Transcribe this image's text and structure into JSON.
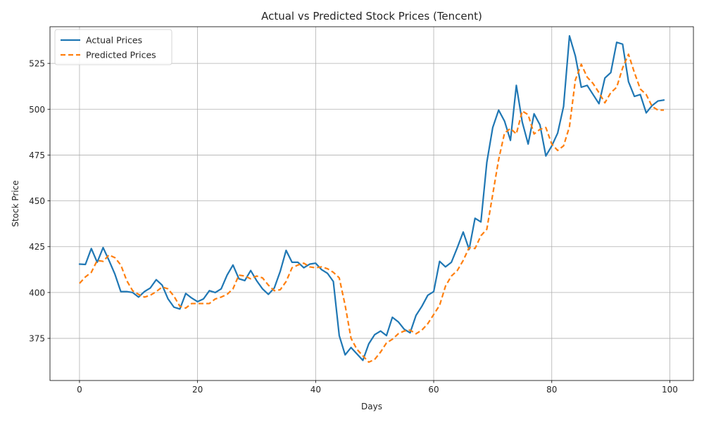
{
  "chart_data": {
    "type": "line",
    "title": "Actual vs Predicted Stock Prices (Tencent)",
    "xlabel": "Days",
    "ylabel": "Stock Price",
    "xlim": [
      -5,
      104
    ],
    "ylim": [
      352,
      545
    ],
    "xticks": [
      0,
      20,
      40,
      60,
      80,
      100
    ],
    "yticks": [
      375,
      400,
      425,
      450,
      475,
      500,
      525
    ],
    "grid": true,
    "legend_position": "upper-left",
    "x": [
      0,
      1,
      2,
      3,
      4,
      5,
      6,
      7,
      8,
      9,
      10,
      11,
      12,
      13,
      14,
      15,
      16,
      17,
      18,
      19,
      20,
      21,
      22,
      23,
      24,
      25,
      26,
      27,
      28,
      29,
      30,
      31,
      32,
      33,
      34,
      35,
      36,
      37,
      38,
      39,
      40,
      41,
      42,
      43,
      44,
      45,
      46,
      47,
      48,
      49,
      50,
      51,
      52,
      53,
      54,
      55,
      56,
      57,
      58,
      59,
      60,
      61,
      62,
      63,
      64,
      65,
      66,
      67,
      68,
      69,
      70,
      71,
      72,
      73,
      74,
      75,
      76,
      77,
      78,
      79,
      80,
      81,
      82,
      83,
      84,
      85,
      86,
      87,
      88,
      89,
      90,
      91,
      92,
      93,
      94,
      95,
      96,
      97,
      98,
      99
    ],
    "series": [
      {
        "name": "Actual Prices",
        "color": "#1f77b4",
        "style": "solid",
        "values": [
          415.5,
          415.3,
          424,
          416.5,
          424.5,
          417.5,
          410,
          400.5,
          400.5,
          400,
          397.5,
          400.5,
          402.5,
          407,
          404,
          396.5,
          392,
          391,
          399.5,
          397,
          395,
          396.5,
          401,
          400,
          402,
          409.5,
          415,
          407.5,
          406.5,
          412,
          406.5,
          402,
          399,
          402.5,
          411.5,
          423,
          416.5,
          416.5,
          413.5,
          415.5,
          416,
          412.5,
          410.5,
          406,
          376.5,
          366,
          370,
          366.5,
          363,
          372,
          377,
          379,
          376.5,
          386.5,
          384,
          380,
          378,
          387.5,
          392.5,
          398.5,
          400.5,
          417,
          414,
          416.5,
          424.5,
          433,
          423.5,
          440.5,
          438.5,
          471,
          490,
          499.5,
          493.5,
          483,
          513,
          493,
          481,
          497.5,
          491.5,
          474.5,
          480,
          487,
          501.5,
          540,
          529,
          512,
          513,
          508,
          503,
          517,
          520,
          536.5,
          535.5,
          515,
          507,
          508,
          498,
          502,
          504.5,
          505
        ]
      },
      {
        "name": "Predicted Prices",
        "color": "#ff7f0e",
        "style": "dashed",
        "values": [
          405,
          408.5,
          411,
          417.5,
          417,
          420.5,
          419,
          415,
          406.5,
          401,
          399,
          397.5,
          398.5,
          400.5,
          403,
          402,
          398,
          392.5,
          391.5,
          394,
          394,
          394,
          394,
          396.5,
          397.5,
          399,
          402,
          409.5,
          409,
          407.5,
          409,
          408,
          404,
          401,
          401.5,
          406,
          413.5,
          415,
          416,
          414,
          413.5,
          414,
          413,
          411,
          408,
          393,
          375,
          369,
          365.5,
          362,
          363.5,
          367.5,
          372.5,
          374.5,
          377.5,
          379,
          379.5,
          377.5,
          379.5,
          383,
          388,
          393,
          403.5,
          409,
          412,
          417.5,
          424.5,
          424,
          431,
          434.5,
          453.5,
          472.5,
          487,
          489.5,
          486.5,
          499,
          497,
          486.5,
          489,
          490,
          481,
          477.5,
          480,
          490.5,
          516,
          524.5,
          517.5,
          514,
          509,
          503.5,
          509,
          512,
          522.5,
          530,
          520,
          511,
          508,
          501.5,
          499.5,
          499.5
        ]
      }
    ]
  }
}
